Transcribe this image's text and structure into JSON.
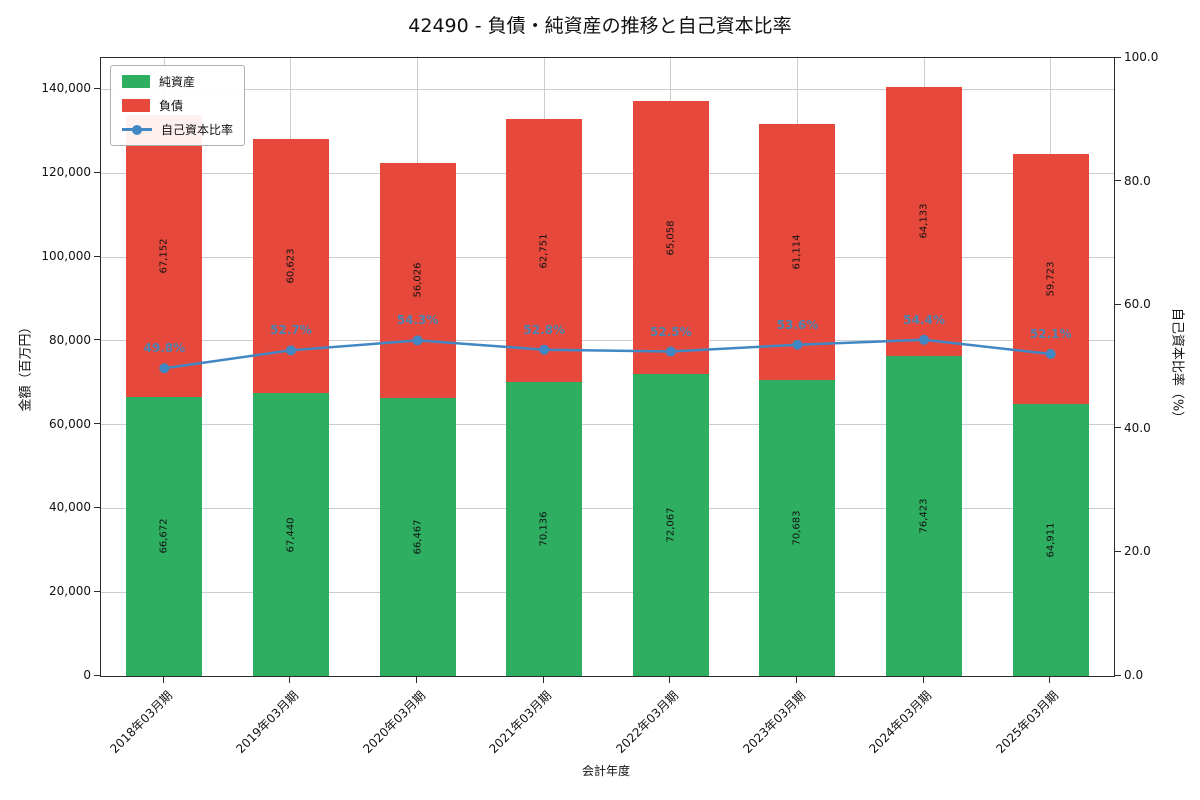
{
  "title": "42490 - 負債・純資産の推移と自己資本比率",
  "chart_data": {
    "type": "bar",
    "stacked": true,
    "title": "42490 - 負債・純資産の推移と自己資本比率",
    "xlabel": "会計年度",
    "ylabel_left": "金額（百万円）",
    "ylabel_right": "自己資本比率（%）",
    "categories": [
      "2018年03月期",
      "2019年03月期",
      "2020年03月期",
      "2021年03月期",
      "2022年03月期",
      "2023年03月期",
      "2024年03月期",
      "2025年03月期"
    ],
    "series": [
      {
        "name": "純資産",
        "color": "#2dae60",
        "values": [
          66672,
          67440,
          66467,
          70136,
          72067,
          70683,
          76423,
          64911
        ]
      },
      {
        "name": "負債",
        "color": "#e6493c",
        "values": [
          67152,
          60623,
          56026,
          62751,
          65058,
          61114,
          64133,
          59723
        ]
      }
    ],
    "line_series": {
      "name": "自己資本比率",
      "color": "#4187c3",
      "label_color": "#4f84b0",
      "unit": "%",
      "values": [
        49.8,
        52.7,
        54.3,
        52.8,
        52.5,
        53.6,
        54.4,
        52.1
      ]
    },
    "ylim_left": [
      0,
      147500
    ],
    "yticks_left": [
      0,
      20000,
      40000,
      60000,
      80000,
      100000,
      120000,
      140000
    ],
    "ylim_right": [
      0,
      100
    ],
    "yticks_right": [
      0,
      20,
      40,
      60,
      80,
      100
    ],
    "grid": true,
    "legend_position": "upper-left"
  }
}
